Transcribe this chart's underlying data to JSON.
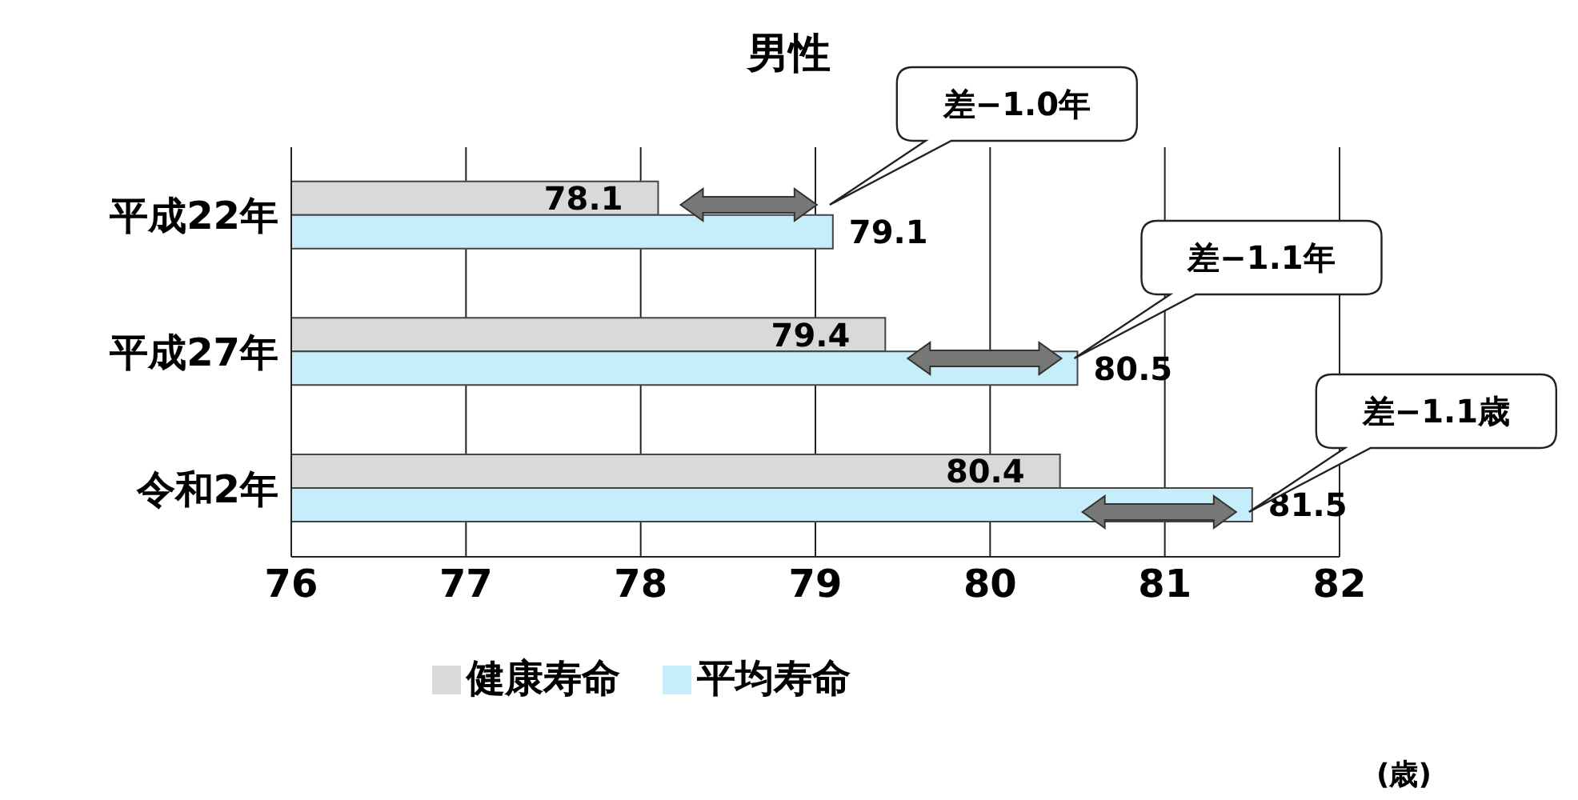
{
  "chart_data": {
    "type": "bar",
    "orientation": "horizontal",
    "title": "男性",
    "categories": [
      "平成22年",
      "平成27年",
      "令和2年"
    ],
    "series": [
      {
        "name": "健康寿命",
        "color": "#d9d9d9",
        "values": [
          78.1,
          79.4,
          80.4
        ]
      },
      {
        "name": "平均寿命",
        "color": "#c6eefa",
        "values": [
          79.1,
          80.5,
          81.5
        ]
      }
    ],
    "xlim": [
      76,
      82
    ],
    "xticks": [
      76,
      77,
      78,
      79,
      80,
      81,
      82
    ],
    "grid": "x",
    "legend": "bottom",
    "data_labels": true,
    "annotations": [
      "差−1.0年",
      "差−1.1年",
      "差−1.1歳",
      "(歳)"
    ]
  }
}
